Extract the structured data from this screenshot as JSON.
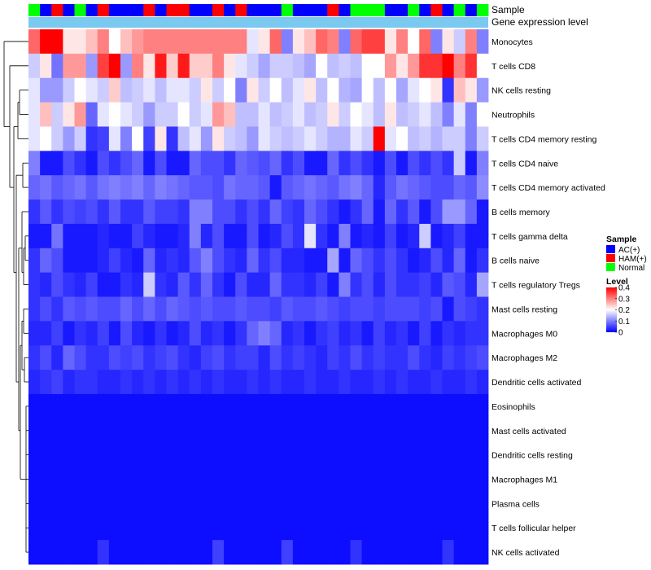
{
  "chart_data": {
    "type": "heatmap",
    "title": "",
    "annotation_labels": [
      "Sample",
      "Gene expression level"
    ],
    "rows": [
      "Monocytes",
      "T cells CD8",
      "NK cells resting",
      "Neutrophils",
      "T cells CD4 memory resting",
      "T cells CD4 naive",
      "T cells CD4 memory activated",
      "B cells memory",
      "T cells gamma delta",
      "B cells naive",
      "T cells regulatory  Tregs",
      "Mast cells resting",
      "Macrophages M0",
      "Macrophages M2",
      "Dendritic cells activated",
      "Eosinophils",
      "Mast cells activated",
      "Dendritic cells resting",
      "Macrophages M1",
      "Plasma cells",
      "T cells follicular helper",
      "NK cells activated"
    ],
    "samples": [
      "N",
      "A",
      "H",
      "A",
      "N",
      "A",
      "H",
      "A",
      "A",
      "A",
      "H",
      "A",
      "H",
      "H",
      "A",
      "A",
      "H",
      "A",
      "H",
      "A",
      "A",
      "A",
      "N",
      "A",
      "A",
      "A",
      "H",
      "A",
      "N",
      "N",
      "N",
      "A",
      "A",
      "N",
      "A",
      "H",
      "A",
      "N",
      "A",
      "N"
    ],
    "values": [
      [
        0.32,
        0.4,
        0.4,
        0.22,
        0.22,
        0.25,
        0.3,
        0.2,
        0.25,
        0.28,
        0.3,
        0.3,
        0.3,
        0.3,
        0.3,
        0.3,
        0.3,
        0.3,
        0.3,
        0.18,
        0.22,
        0.32,
        0.1,
        0.22,
        0.25,
        0.32,
        0.3,
        0.1,
        0.32,
        0.35,
        0.35,
        0.22,
        0.3,
        0.2,
        0.32,
        0.1,
        0.22,
        0.16,
        0.3,
        0.1
      ],
      [
        0.16,
        0.22,
        0.09,
        0.28,
        0.28,
        0.12,
        0.35,
        0.4,
        0.12,
        0.3,
        0.22,
        0.38,
        0.24,
        0.38,
        0.24,
        0.24,
        0.3,
        0.22,
        0.18,
        0.16,
        0.13,
        0.16,
        0.16,
        0.15,
        0.13,
        0.2,
        0.15,
        0.16,
        0.15,
        0.2,
        0.2,
        0.28,
        0.22,
        0.28,
        0.36,
        0.36,
        0.4,
        0.3,
        0.36,
        0.2
      ],
      [
        0.18,
        0.12,
        0.12,
        0.16,
        0.2,
        0.18,
        0.16,
        0.24,
        0.15,
        0.16,
        0.18,
        0.15,
        0.18,
        0.18,
        0.16,
        0.22,
        0.16,
        0.2,
        0.1,
        0.22,
        0.16,
        0.2,
        0.15,
        0.18,
        0.22,
        0.15,
        0.2,
        0.14,
        0.13,
        0.2,
        0.15,
        0.2,
        0.13,
        0.18,
        0.2,
        0.22,
        0.04,
        0.25,
        0.22,
        0.12
      ],
      [
        0.18,
        0.25,
        0.16,
        0.22,
        0.28,
        0.08,
        0.18,
        0.2,
        0.18,
        0.16,
        0.12,
        0.16,
        0.16,
        0.2,
        0.16,
        0.18,
        0.28,
        0.25,
        0.15,
        0.15,
        0.18,
        0.15,
        0.16,
        0.18,
        0.15,
        0.16,
        0.22,
        0.16,
        0.2,
        0.18,
        0.15,
        0.22,
        0.15,
        0.16,
        0.18,
        0.15,
        0.1,
        0.18,
        0.1,
        0.2
      ],
      [
        0.18,
        0.2,
        0.16,
        0.12,
        0.16,
        0.04,
        0.05,
        0.18,
        0.1,
        0.2,
        0.05,
        0.22,
        0.04,
        0.15,
        0.18,
        0.12,
        0.22,
        0.16,
        0.15,
        0.12,
        0.18,
        0.16,
        0.15,
        0.16,
        0.18,
        0.16,
        0.14,
        0.14,
        0.18,
        0.16,
        0.42,
        0.18,
        0.2,
        0.15,
        0.16,
        0.14,
        0.16,
        0.16,
        0.1,
        0.16
      ],
      [
        0.1,
        0.02,
        0.02,
        0.06,
        0.04,
        0.02,
        0.06,
        0.04,
        0.06,
        0.08,
        0.02,
        0.06,
        0.02,
        0.02,
        0.08,
        0.06,
        0.06,
        0.04,
        0.08,
        0.07,
        0.06,
        0.08,
        0.04,
        0.06,
        0.02,
        0.02,
        0.08,
        0.04,
        0.06,
        0.04,
        0.02,
        0.06,
        0.02,
        0.06,
        0.04,
        0.06,
        0.04,
        0.16,
        0.02,
        0.1
      ],
      [
        0.08,
        0.09,
        0.07,
        0.08,
        0.09,
        0.07,
        0.09,
        0.1,
        0.09,
        0.1,
        0.08,
        0.1,
        0.09,
        0.08,
        0.07,
        0.07,
        0.06,
        0.09,
        0.08,
        0.08,
        0.07,
        0.02,
        0.07,
        0.08,
        0.09,
        0.08,
        0.07,
        0.09,
        0.1,
        0.08,
        0.03,
        0.07,
        0.09,
        0.08,
        0.07,
        0.06,
        0.06,
        0.08,
        0.07,
        0.11
      ],
      [
        0.04,
        0.07,
        0.04,
        0.06,
        0.05,
        0.06,
        0.04,
        0.07,
        0.04,
        0.04,
        0.07,
        0.05,
        0.05,
        0.04,
        0.1,
        0.1,
        0.06,
        0.06,
        0.04,
        0.06,
        0.04,
        0.08,
        0.05,
        0.04,
        0.08,
        0.06,
        0.04,
        0.02,
        0.04,
        0.08,
        0.02,
        0.08,
        0.04,
        0.07,
        0.02,
        0.06,
        0.12,
        0.12,
        0.08,
        0.02
      ],
      [
        0.02,
        0.02,
        0.09,
        0.02,
        0.02,
        0.02,
        0.03,
        0.02,
        0.02,
        0.05,
        0.03,
        0.02,
        0.02,
        0.03,
        0.1,
        0.03,
        0.06,
        0.02,
        0.02,
        0.06,
        0.02,
        0.03,
        0.06,
        0.04,
        0.18,
        0.04,
        0.02,
        0.1,
        0.02,
        0.03,
        0.02,
        0.05,
        0.02,
        0.03,
        0.16,
        0.02,
        0.03,
        0.05,
        0.02,
        0.02
      ],
      [
        0.04,
        0.08,
        0.06,
        0.02,
        0.02,
        0.02,
        0.03,
        0.05,
        0.03,
        0.02,
        0.08,
        0.03,
        0.04,
        0.03,
        0.07,
        0.1,
        0.06,
        0.04,
        0.03,
        0.08,
        0.04,
        0.06,
        0.03,
        0.03,
        0.02,
        0.02,
        0.13,
        0.02,
        0.08,
        0.06,
        0.04,
        0.06,
        0.04,
        0.02,
        0.03,
        0.06,
        0.03,
        0.08,
        0.02,
        0.04
      ],
      [
        0.04,
        0.03,
        0.06,
        0.04,
        0.03,
        0.05,
        0.02,
        0.02,
        0.04,
        0.03,
        0.16,
        0.04,
        0.03,
        0.07,
        0.04,
        0.08,
        0.04,
        0.02,
        0.06,
        0.03,
        0.03,
        0.08,
        0.04,
        0.04,
        0.03,
        0.05,
        0.02,
        0.1,
        0.04,
        0.06,
        0.03,
        0.06,
        0.04,
        0.04,
        0.05,
        0.03,
        0.07,
        0.06,
        0.03,
        0.13
      ],
      [
        0.04,
        0.06,
        0.04,
        0.07,
        0.06,
        0.07,
        0.06,
        0.06,
        0.08,
        0.06,
        0.08,
        0.06,
        0.08,
        0.07,
        0.06,
        0.07,
        0.06,
        0.06,
        0.07,
        0.06,
        0.06,
        0.05,
        0.07,
        0.06,
        0.06,
        0.07,
        0.06,
        0.05,
        0.06,
        0.06,
        0.05,
        0.06,
        0.06,
        0.06,
        0.05,
        0.06,
        0.02,
        0.06,
        0.05,
        0.04
      ],
      [
        0.03,
        0.03,
        0.05,
        0.02,
        0.04,
        0.03,
        0.05,
        0.02,
        0.06,
        0.03,
        0.02,
        0.04,
        0.02,
        0.03,
        0.06,
        0.03,
        0.04,
        0.02,
        0.04,
        0.08,
        0.1,
        0.08,
        0.03,
        0.04,
        0.02,
        0.04,
        0.05,
        0.03,
        0.04,
        0.02,
        0.05,
        0.03,
        0.04,
        0.02,
        0.05,
        0.02,
        0.04,
        0.03,
        0.04,
        0.04
      ],
      [
        0.04,
        0.06,
        0.03,
        0.08,
        0.06,
        0.04,
        0.04,
        0.06,
        0.05,
        0.06,
        0.04,
        0.05,
        0.06,
        0.04,
        0.03,
        0.05,
        0.06,
        0.04,
        0.05,
        0.05,
        0.03,
        0.06,
        0.04,
        0.05,
        0.04,
        0.03,
        0.05,
        0.04,
        0.06,
        0.04,
        0.05,
        0.04,
        0.04,
        0.06,
        0.04,
        0.03,
        0.05,
        0.04,
        0.05,
        0.06
      ],
      [
        0.03,
        0.04,
        0.05,
        0.03,
        0.04,
        0.04,
        0.03,
        0.03,
        0.04,
        0.03,
        0.04,
        0.03,
        0.04,
        0.03,
        0.04,
        0.03,
        0.04,
        0.03,
        0.03,
        0.04,
        0.03,
        0.04,
        0.03,
        0.03,
        0.04,
        0.03,
        0.03,
        0.04,
        0.03,
        0.03,
        0.04,
        0.03,
        0.04,
        0.03,
        0.03,
        0.04,
        0.03,
        0.03,
        0.04,
        0.03
      ],
      [
        0.01,
        0.01,
        0.01,
        0.01,
        0.01,
        0.01,
        0.01,
        0.01,
        0.01,
        0.01,
        0.01,
        0.01,
        0.01,
        0.01,
        0.01,
        0.01,
        0.01,
        0.01,
        0.01,
        0.01,
        0.01,
        0.01,
        0.01,
        0.01,
        0.01,
        0.01,
        0.01,
        0.01,
        0.01,
        0.01,
        0.01,
        0.01,
        0.01,
        0.01,
        0.01,
        0.01,
        0.01,
        0.01,
        0.01,
        0.01
      ],
      [
        0.01,
        0.01,
        0.01,
        0.01,
        0.01,
        0.01,
        0.01,
        0.01,
        0.01,
        0.01,
        0.01,
        0.01,
        0.01,
        0.01,
        0.01,
        0.01,
        0.01,
        0.01,
        0.01,
        0.01,
        0.01,
        0.01,
        0.01,
        0.01,
        0.01,
        0.01,
        0.01,
        0.01,
        0.01,
        0.01,
        0.01,
        0.01,
        0.01,
        0.01,
        0.01,
        0.01,
        0.01,
        0.01,
        0.01,
        0.01
      ],
      [
        0.01,
        0.01,
        0.01,
        0.01,
        0.01,
        0.01,
        0.01,
        0.01,
        0.01,
        0.01,
        0.01,
        0.01,
        0.01,
        0.01,
        0.01,
        0.01,
        0.01,
        0.01,
        0.01,
        0.01,
        0.01,
        0.01,
        0.01,
        0.01,
        0.01,
        0.01,
        0.01,
        0.01,
        0.01,
        0.01,
        0.01,
        0.01,
        0.01,
        0.01,
        0.01,
        0.01,
        0.01,
        0.01,
        0.01,
        0.01
      ],
      [
        0.01,
        0.01,
        0.01,
        0.01,
        0.01,
        0.01,
        0.01,
        0.01,
        0.01,
        0.01,
        0.01,
        0.01,
        0.01,
        0.01,
        0.01,
        0.01,
        0.01,
        0.01,
        0.01,
        0.01,
        0.01,
        0.01,
        0.01,
        0.01,
        0.01,
        0.01,
        0.01,
        0.01,
        0.01,
        0.01,
        0.01,
        0.01,
        0.01,
        0.01,
        0.01,
        0.01,
        0.01,
        0.01,
        0.01,
        0.01
      ],
      [
        0.01,
        0.01,
        0.01,
        0.01,
        0.01,
        0.01,
        0.01,
        0.01,
        0.01,
        0.01,
        0.01,
        0.01,
        0.01,
        0.01,
        0.01,
        0.01,
        0.01,
        0.01,
        0.01,
        0.01,
        0.01,
        0.01,
        0.01,
        0.01,
        0.01,
        0.01,
        0.01,
        0.01,
        0.01,
        0.01,
        0.01,
        0.01,
        0.01,
        0.01,
        0.01,
        0.01,
        0.01,
        0.01,
        0.01,
        0.01
      ],
      [
        0.01,
        0.01,
        0.01,
        0.01,
        0.01,
        0.01,
        0.01,
        0.01,
        0.01,
        0.01,
        0.01,
        0.01,
        0.01,
        0.01,
        0.01,
        0.01,
        0.01,
        0.01,
        0.01,
        0.01,
        0.01,
        0.01,
        0.01,
        0.01,
        0.01,
        0.01,
        0.01,
        0.01,
        0.01,
        0.01,
        0.01,
        0.01,
        0.01,
        0.01,
        0.01,
        0.01,
        0.01,
        0.01,
        0.01,
        0.01
      ],
      [
        0.01,
        0.01,
        0.01,
        0.01,
        0.01,
        0.01,
        0.04,
        0.01,
        0.01,
        0.01,
        0.01,
        0.01,
        0.01,
        0.01,
        0.01,
        0.01,
        0.05,
        0.01,
        0.01,
        0.01,
        0.01,
        0.01,
        0.05,
        0.01,
        0.01,
        0.01,
        0.01,
        0.01,
        0.04,
        0.01,
        0.01,
        0.01,
        0.01,
        0.01,
        0.01,
        0.01,
        0.04,
        0.01,
        0.01,
        0.01
      ]
    ],
    "legend": {
      "sample_title": "Sample",
      "sample_entries": [
        {
          "code": "A",
          "label": "AC(+)",
          "color": "#0000ff"
        },
        {
          "code": "H",
          "label": "HAM(+)",
          "color": "#ff0000"
        },
        {
          "code": "N",
          "label": "Normal",
          "color": "#00ff00"
        }
      ],
      "level_title": "Level",
      "level_ticks": [
        "0.4",
        "0.3",
        "0.2",
        "0.1",
        "0"
      ],
      "level_min": 0,
      "level_max": 0.4
    },
    "colors": {
      "low": "#0000ff",
      "mid": "#ffffff",
      "high": "#ff0000",
      "gene_expression_band": "#79c9f0"
    }
  }
}
